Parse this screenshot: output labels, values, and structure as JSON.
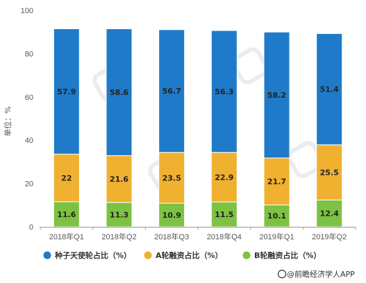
{
  "chart_data": {
    "type": "bar",
    "stacked": true,
    "categories": [
      "2018年Q1",
      "2018年Q2",
      "2018年Q3",
      "2018年Q4",
      "2019年Q1",
      "2019年Q2"
    ],
    "series": [
      {
        "name": "B轮融资占比（%）",
        "values": [
          11.6,
          11.3,
          10.9,
          11.5,
          10.1,
          12.4
        ],
        "color": "#7dc242"
      },
      {
        "name": "A轮融资占比（%）",
        "values": [
          22,
          21.6,
          23.5,
          22.9,
          21.7,
          25.5
        ],
        "color": "#f0b030"
      },
      {
        "name": "种子天使轮占比（%）",
        "values": [
          57.9,
          58.6,
          56.7,
          56.3,
          58.2,
          51.4
        ],
        "color": "#1f7bc9"
      }
    ],
    "ylabel": "单位：%",
    "ylim": [
      0,
      100
    ],
    "yticks": [
      0,
      20,
      40,
      60,
      80,
      100
    ],
    "legend_position": "bottom",
    "grid": false
  },
  "source_text": "@前瞻经济学人APP"
}
